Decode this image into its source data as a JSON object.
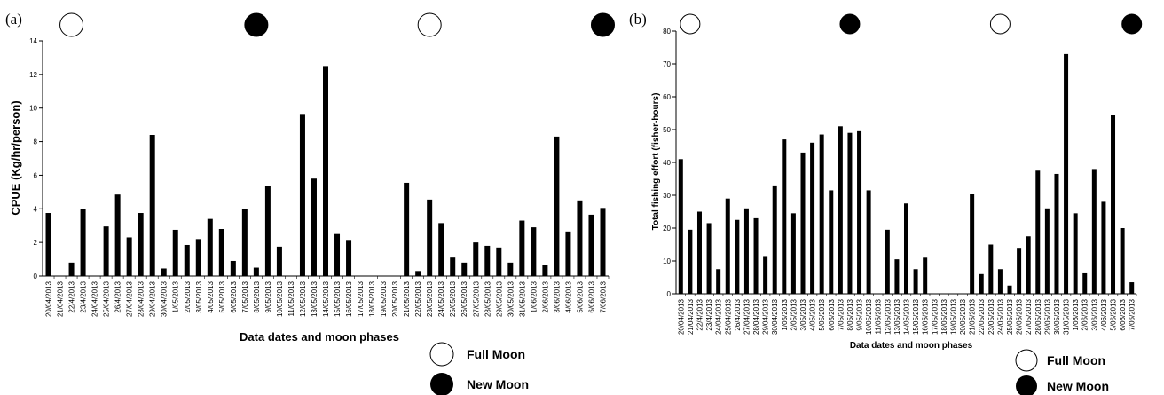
{
  "chart_data": [
    {
      "type": "bar",
      "panel_label": "(a)",
      "title": "",
      "xlabel": "Data dates and moon phases",
      "ylabel": "CPUE (Kg/hr/person)",
      "ylim": [
        0,
        14
      ],
      "yticks": [
        "0",
        "2",
        "4",
        "6",
        "8",
        "10",
        "12",
        "14"
      ],
      "categories": [
        "20/04/2013",
        "21/04/2013",
        "22/4/2013",
        "23/4/2013",
        "24/04/2013",
        "25/04/2013",
        "26/4/2013",
        "27/04/2013",
        "28/04/2013",
        "29/04/2013",
        "30/04/2013",
        "1/05/2013",
        "2/05/2013",
        "3/05/2013",
        "4/05/2013",
        "5/05/2013",
        "6/05/2013",
        "7/05/2013",
        "8/05/2013",
        "9/05/2013",
        "10/05/2013",
        "11/05/2013",
        "12/05/2013",
        "13/05/2013",
        "14/05/2013",
        "15/05/2013",
        "16/05/2013",
        "17/05/2013",
        "18/05/2013",
        "19/05/2013",
        "20/05/2013",
        "21/05/2013",
        "22/05/2013",
        "23/05/2013",
        "24/05/2013",
        "25/05/2013",
        "26/05/2013",
        "27/05/2013",
        "28/05/2013",
        "29/05/2013",
        "30/05/2013",
        "31/05/2013",
        "1/06/2013",
        "2/06/2013",
        "3/06/2013",
        "4/06/2013",
        "5/06/2013",
        "6/06/2013",
        "7/06/2013"
      ],
      "values": [
        3.75,
        0,
        0.8,
        4.0,
        0,
        2.95,
        4.85,
        2.3,
        3.75,
        8.4,
        0.45,
        2.75,
        1.85,
        2.2,
        3.4,
        2.8,
        0.9,
        4.0,
        0.5,
        5.35,
        1.75,
        0,
        9.65,
        5.8,
        12.5,
        2.5,
        2.15,
        0,
        0,
        0,
        0,
        5.55,
        0.3,
        4.55,
        3.15,
        1.1,
        0.8,
        2.0,
        1.8,
        1.7,
        0.8,
        3.3,
        2.9,
        0.65,
        8.3,
        2.65,
        4.5,
        3.65,
        4.05
      ],
      "moon_phases": [
        {
          "category": "22/4/2013",
          "phase": "full"
        },
        {
          "category": "8/05/2013",
          "phase": "new"
        },
        {
          "category": "23/05/2013",
          "phase": "full"
        },
        {
          "category": "7/06/2013",
          "phase": "new"
        }
      ],
      "grid": false
    },
    {
      "type": "bar",
      "panel_label": "(b)",
      "title": "",
      "xlabel": "Data dates and moon phases",
      "ylabel": "Total fishing effort (fisher-hours)",
      "ylim": [
        0,
        80
      ],
      "yticks": [
        "0",
        "10",
        "20",
        "30",
        "40",
        "50",
        "60",
        "70",
        "80"
      ],
      "categories": [
        "20/04/2013",
        "21/04/2013",
        "22/4/2013",
        "23/4/2013",
        "24/04/2013",
        "25/04/2013",
        "26/4/2013",
        "27/04/2013",
        "28/04/2013",
        "29/04/2013",
        "30/04/2013",
        "1/05/2013",
        "2/05/2013",
        "3/05/2013",
        "4/05/2013",
        "5/05/2013",
        "6/05/2013",
        "7/05/2013",
        "8/05/2013",
        "9/05/2013",
        "10/05/2013",
        "11/05/2013",
        "12/05/2013",
        "13/05/2013",
        "14/05/2013",
        "15/05/2013",
        "16/05/2013",
        "17/05/2013",
        "18/05/2013",
        "19/05/2013",
        "20/05/2013",
        "21/05/2013",
        "22/05/2013",
        "23/05/2013",
        "24/05/2013",
        "25/05/2013",
        "26/05/2013",
        "27/05/2013",
        "28/05/2013",
        "29/05/2013",
        "30/05/2013",
        "31/05/2013",
        "1/06/2013",
        "2/06/2013",
        "3/06/2013",
        "4/06/2013",
        "5/06/2013",
        "6/06/2013",
        "7/06/2013"
      ],
      "values": [
        41,
        19.5,
        25,
        21.5,
        7.5,
        29,
        22.5,
        26,
        23,
        11.5,
        33,
        47,
        24.5,
        43,
        46,
        48.5,
        31.5,
        51,
        49,
        49.5,
        31.5,
        0,
        19.5,
        10.5,
        27.5,
        7.5,
        11,
        0,
        0,
        0,
        0,
        30.5,
        6,
        15,
        7.5,
        2.5,
        14,
        17.5,
        37.5,
        26,
        36.5,
        73,
        24.5,
        6.5,
        38,
        28,
        54.5,
        20,
        3.5
      ],
      "moon_phases": [
        {
          "category": "21/04/2013",
          "phase": "full"
        },
        {
          "category": "8/05/2013",
          "phase": "new"
        },
        {
          "category": "24/05/2013",
          "phase": "full"
        },
        {
          "category": "7/06/2013",
          "phase": "new"
        }
      ],
      "grid": false
    }
  ],
  "legend": {
    "full_moon": "Full Moon",
    "new_moon": "New Moon"
  }
}
